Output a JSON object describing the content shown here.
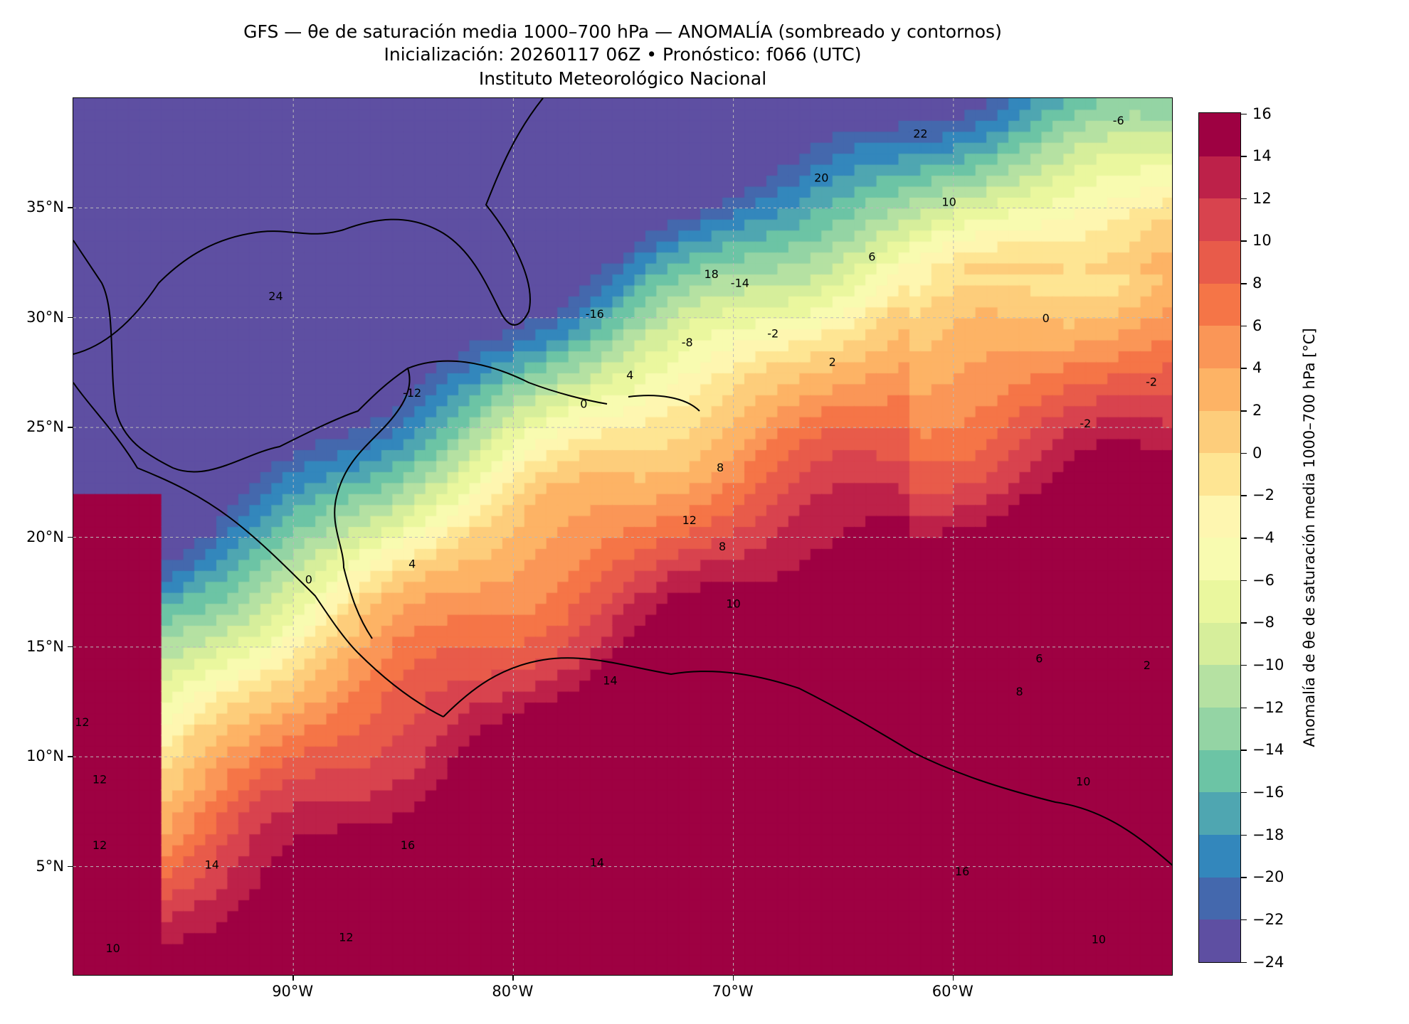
{
  "title": {
    "line1": "GFS — θe de saturación media 1000–700 hPa — ANOMALÍA (sombreado y contornos)",
    "line2": "Inicialización: 20260117 06Z   •   Pronóstico: f066 (UTC)",
    "line3": "Instituto Meteorológico Nacional"
  },
  "map": {
    "lon_range": [
      -100,
      -50
    ],
    "lat_range": [
      0,
      40
    ],
    "lat_ticks": [
      {
        "value": 35,
        "label": "35°N"
      },
      {
        "value": 30,
        "label": "30°N"
      },
      {
        "value": 25,
        "label": "25°N"
      },
      {
        "value": 20,
        "label": "20°N"
      },
      {
        "value": 15,
        "label": "15°N"
      },
      {
        "value": 10,
        "label": "10°N"
      },
      {
        "value": 5,
        "label": "5°N"
      }
    ],
    "lon_ticks": [
      {
        "value": -90,
        "label": "90°W"
      },
      {
        "value": -80,
        "label": "80°W"
      },
      {
        "value": -70,
        "label": "70°W"
      },
      {
        "value": -60,
        "label": "60°W"
      }
    ],
    "contour_labels": [
      {
        "lon": -52.5,
        "lat": 38.8,
        "text": "-6"
      },
      {
        "lon": -61.5,
        "lat": 38.2,
        "text": "22"
      },
      {
        "lon": -66,
        "lat": 36.2,
        "text": "20"
      },
      {
        "lon": -60.2,
        "lat": 35.1,
        "text": "10"
      },
      {
        "lon": -63.7,
        "lat": 32.6,
        "text": "6"
      },
      {
        "lon": -71,
        "lat": 31.8,
        "text": "18"
      },
      {
        "lon": -69.7,
        "lat": 31.4,
        "text": "-14"
      },
      {
        "lon": -90.8,
        "lat": 30.8,
        "text": "24"
      },
      {
        "lon": -76.3,
        "lat": 30.0,
        "text": "-16"
      },
      {
        "lon": -72.1,
        "lat": 28.7,
        "text": "-8"
      },
      {
        "lon": -68.2,
        "lat": 29.1,
        "text": "-2"
      },
      {
        "lon": -74.7,
        "lat": 27.2,
        "text": "4"
      },
      {
        "lon": -65.5,
        "lat": 27.8,
        "text": "2"
      },
      {
        "lon": -55.8,
        "lat": 29.8,
        "text": "0"
      },
      {
        "lon": -51.0,
        "lat": 26.9,
        "text": "-2"
      },
      {
        "lon": -54,
        "lat": 25.0,
        "text": "-2"
      },
      {
        "lon": -84.6,
        "lat": 26.4,
        "text": "-12"
      },
      {
        "lon": -76.8,
        "lat": 25.9,
        "text": "0"
      },
      {
        "lon": -70.6,
        "lat": 23.0,
        "text": "8"
      },
      {
        "lon": -72.0,
        "lat": 20.6,
        "text": "12"
      },
      {
        "lon": -70.5,
        "lat": 19.4,
        "text": "8"
      },
      {
        "lon": -70,
        "lat": 16.8,
        "text": "10"
      },
      {
        "lon": -89.3,
        "lat": 17.9,
        "text": "0"
      },
      {
        "lon": -84.6,
        "lat": 18.6,
        "text": "4"
      },
      {
        "lon": -75.6,
        "lat": 13.3,
        "text": "14"
      },
      {
        "lon": -56.1,
        "lat": 14.3,
        "text": "6"
      },
      {
        "lon": -51.2,
        "lat": 14.0,
        "text": "2"
      },
      {
        "lon": -57.0,
        "lat": 12.8,
        "text": "8"
      },
      {
        "lon": -99.6,
        "lat": 11.4,
        "text": "12"
      },
      {
        "lon": -98.8,
        "lat": 8.8,
        "text": "12"
      },
      {
        "lon": -98.8,
        "lat": 5.8,
        "text": "12"
      },
      {
        "lon": -84.8,
        "lat": 5.8,
        "text": "16"
      },
      {
        "lon": -93.7,
        "lat": 4.9,
        "text": "14"
      },
      {
        "lon": -76.2,
        "lat": 5.0,
        "text": "14"
      },
      {
        "lon": -54.1,
        "lat": 8.7,
        "text": "10"
      },
      {
        "lon": -59.6,
        "lat": 4.6,
        "text": "16"
      },
      {
        "lon": -53.4,
        "lat": 1.5,
        "text": "10"
      },
      {
        "lon": -98.2,
        "lat": 1.1,
        "text": "10"
      },
      {
        "lon": -87.6,
        "lat": 1.6,
        "text": "12"
      }
    ]
  },
  "colorbar": {
    "label": "Anomalía de θe de saturación media 1000–700 hPa [°C]",
    "levels": [
      -24,
      -22,
      -20,
      -18,
      -16,
      -14,
      -12,
      -10,
      -8,
      -6,
      -4,
      -2,
      0,
      2,
      4,
      6,
      8,
      10,
      12,
      14,
      16
    ],
    "tick_labels": [
      "−24",
      "−22",
      "−20",
      "−18",
      "−16",
      "−14",
      "−12",
      "−10",
      "−8",
      "−6",
      "−4",
      "−2",
      "0",
      "2",
      "4",
      "6",
      "8",
      "10",
      "12",
      "14",
      "16"
    ],
    "colors": [
      "#5e4fa2",
      "#4468ad",
      "#3387bc",
      "#4fa6b1",
      "#6cc4a5",
      "#94d4a4",
      "#b5e1a2",
      "#d6ee9b",
      "#eaf79e",
      "#f8fbb0",
      "#fef6b0",
      "#fee593",
      "#fdcd7b",
      "#fdb365",
      "#fa9657",
      "#f57547",
      "#e85b4a",
      "#d8434e",
      "#bd2149",
      "#9e0142"
    ]
  }
}
